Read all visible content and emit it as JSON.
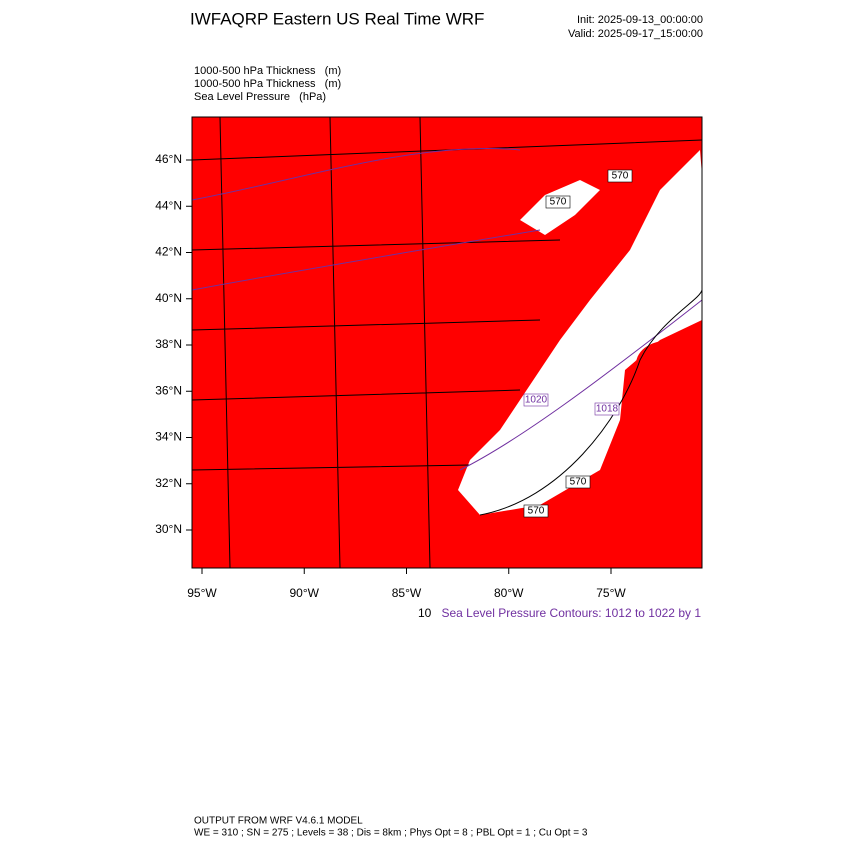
{
  "header": {
    "title": "IWFAQRP Eastern US Real Time WRF",
    "init": "Init: 2025-09-13_00:00:00",
    "valid": "Valid: 2025-09-17_15:00:00"
  },
  "fields": [
    "1000-500 hPa Thickness   (m)",
    "1000-500 hPa Thickness   (m)",
    "Sea Level Pressure   (hPa)"
  ],
  "lat_labels": [
    "46°N",
    "44°N",
    "42°N",
    "40°N",
    "38°N",
    "36°N",
    "34°N",
    "32°N",
    "30°N"
  ],
  "lon_labels": [
    "95°W",
    "90°W",
    "85°W",
    "80°W",
    "75°W"
  ],
  "contour_labels": [
    "570",
    "570",
    "570",
    "570",
    "1018",
    "1020"
  ],
  "thickness_note": "10",
  "pressure_note": "Sea Level Pressure Contours: 1012 to 1022 by 1",
  "footer": [
    "OUTPUT FROM WRF V4.6.1 MODEL",
    "WE = 310 ; SN = 275 ; Levels = 38 ; Dis = 8km ; Phys Opt = 8 ; PBL Opt = 1 ; Cu Opt = 3"
  ]
}
